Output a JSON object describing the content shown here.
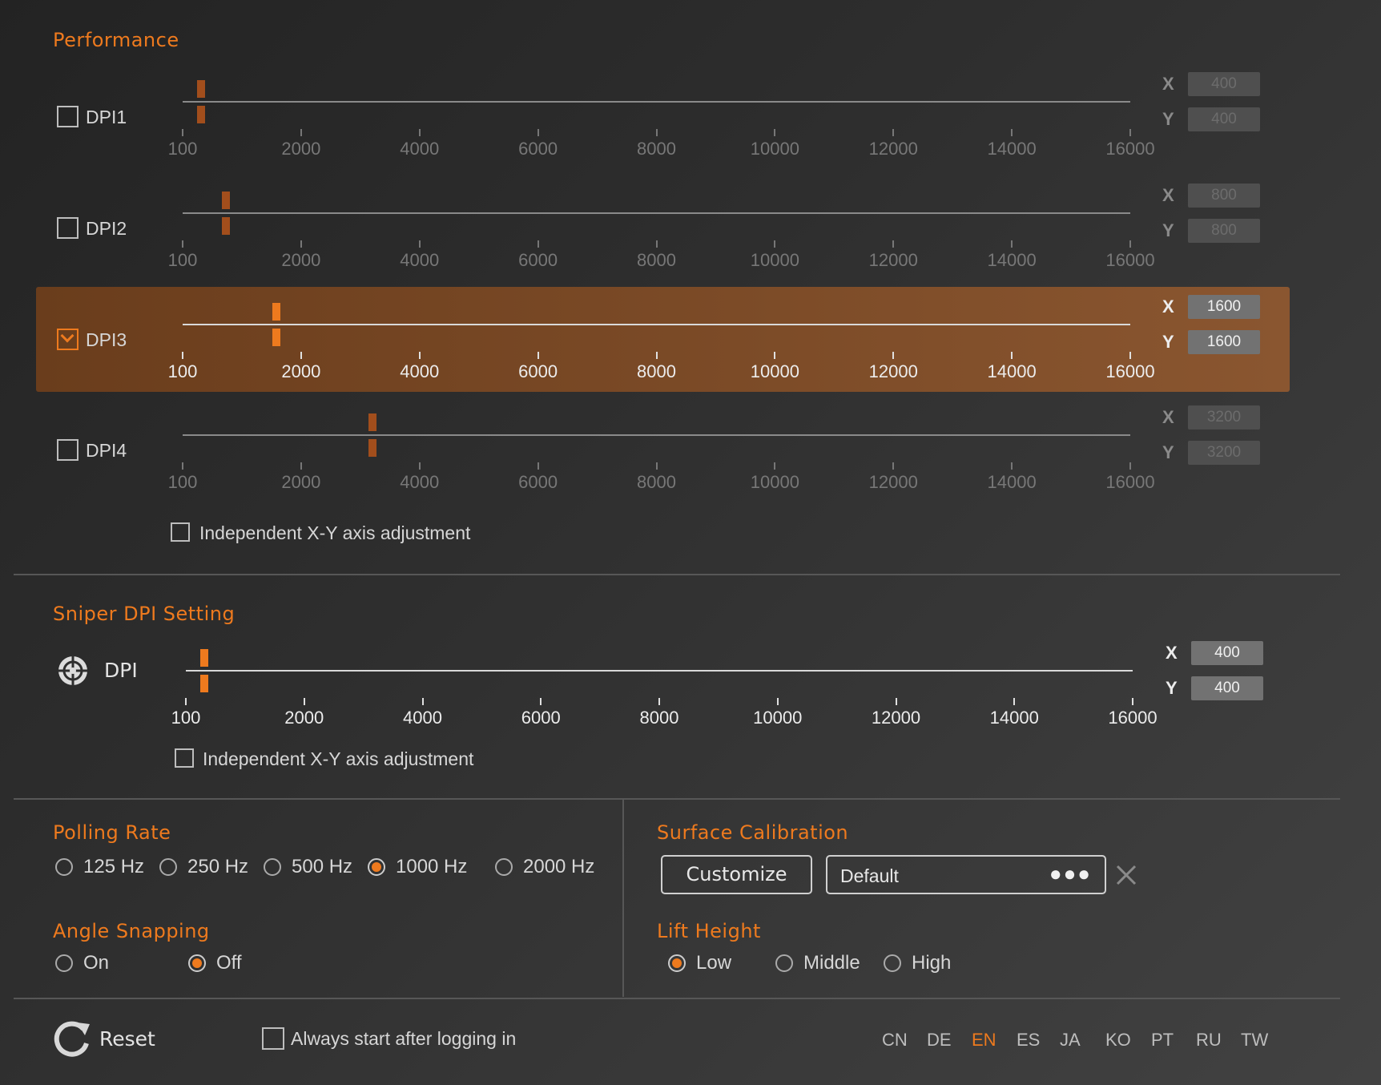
{
  "colors": {
    "accent": "#ee7a1e",
    "thumb_inactive": "#a24e1c",
    "thumb_active": "#ee7a1e"
  },
  "performance": {
    "title": "Performance",
    "tick_labels": [
      "100",
      "2000",
      "4000",
      "6000",
      "8000",
      "10000",
      "12000",
      "14000",
      "16000"
    ],
    "axis_x": "X",
    "axis_y": "Y",
    "dpi_min": 100,
    "dpi_max": 16000,
    "profiles": [
      {
        "label": "DPI1",
        "checked": false,
        "active": false,
        "x": "400",
        "y": "400",
        "value": 400
      },
      {
        "label": "DPI2",
        "checked": false,
        "active": false,
        "x": "800",
        "y": "800",
        "value": 800
      },
      {
        "label": "DPI3",
        "checked": true,
        "active": true,
        "x": "1600",
        "y": "1600",
        "value": 1600
      },
      {
        "label": "DPI4",
        "checked": false,
        "active": false,
        "x": "3200",
        "y": "3200",
        "value": 3200
      }
    ],
    "independent_label": "Independent X-Y axis adjustment"
  },
  "sniper": {
    "title": "Sniper DPI Setting",
    "dpi_label": "DPI",
    "x": "400",
    "y": "400",
    "value": 400,
    "independent_label": "Independent X-Y axis adjustment"
  },
  "polling": {
    "title": "Polling Rate",
    "options": [
      "125 Hz",
      "250 Hz",
      "500 Hz",
      "1000 Hz",
      "2000 Hz"
    ],
    "selected": "1000 Hz"
  },
  "angle": {
    "title": "Angle Snapping",
    "options": [
      "On",
      "Off"
    ],
    "selected": "Off"
  },
  "surface": {
    "title": "Surface Calibration",
    "customize": "Customize",
    "profile": "Default"
  },
  "lift": {
    "title": "Lift Height",
    "options": [
      "Low",
      "Middle",
      "High"
    ],
    "selected": "Low"
  },
  "footer": {
    "reset": "Reset",
    "autostart": "Always start after logging in",
    "languages": [
      "CN",
      "DE",
      "EN",
      "ES",
      "JA",
      "KO",
      "PT",
      "RU",
      "TW"
    ],
    "selected_language": "EN"
  }
}
